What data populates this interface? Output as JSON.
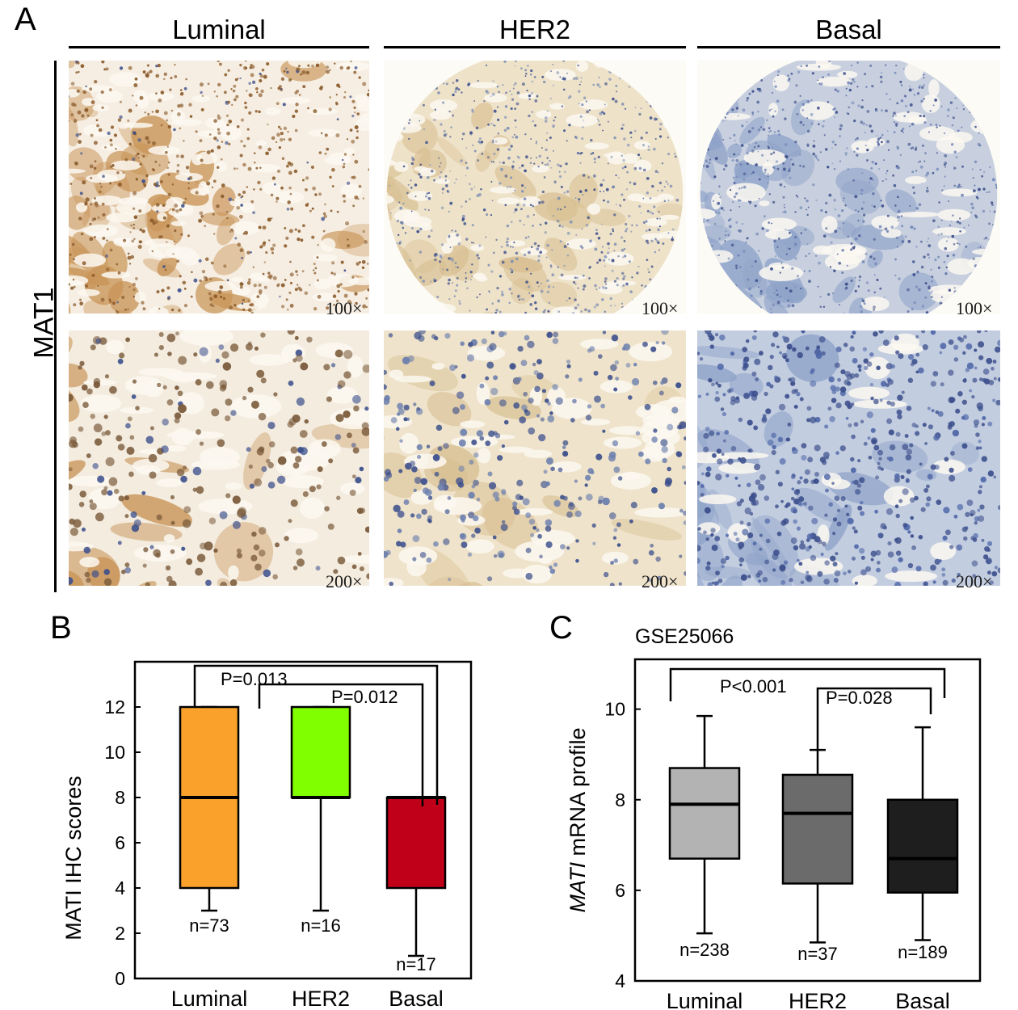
{
  "panel_a": {
    "letter": "A",
    "row_label": "MAT1",
    "columns": [
      "Luminal",
      "HER2",
      "Basal"
    ],
    "magnifications": {
      "low": "100×",
      "high": "200×"
    },
    "colors": {
      "luminal_stain": "#c9965a",
      "her2_stain": "#d8bf92",
      "basal_stain": "#8fa3c9",
      "nuclei": "#3c4f8c"
    }
  },
  "chart_data": [
    {
      "panel": "B",
      "type": "box",
      "title": "",
      "ylabel": "MATI IHC scores",
      "ylim": [
        0,
        14
      ],
      "yticks": [
        0,
        2,
        4,
        6,
        8,
        10,
        12
      ],
      "categories": [
        "Luminal",
        "HER2",
        "Basal"
      ],
      "boxes": [
        {
          "category": "Luminal",
          "min": 3,
          "q1": 4,
          "median": 8,
          "q3": 12,
          "max": 12,
          "n": "n=73",
          "color": "#f9a12a"
        },
        {
          "category": "HER2",
          "min": 3,
          "q1": 8,
          "median": 8,
          "q3": 12,
          "max": 12,
          "n": "n=16",
          "color": "#80ff00"
        },
        {
          "category": "Basal",
          "min": 1,
          "q1": 4,
          "median": 8,
          "q3": 8,
          "max": 8,
          "n": "n=17",
          "color": "#c00018"
        }
      ],
      "comparisons": [
        {
          "from": "Luminal",
          "to": "Basal",
          "label": "P=0.013"
        },
        {
          "from": "HER2",
          "to": "Basal",
          "label": "P=0.012"
        }
      ]
    },
    {
      "panel": "C",
      "type": "box",
      "title": "GSE25066",
      "ylabel_italic": "MATI",
      "ylabel_rest": " mRNA profile",
      "ylim": [
        4,
        11.1
      ],
      "yticks": [
        4,
        6,
        8,
        10
      ],
      "categories": [
        "Luminal",
        "HER2",
        "Basal"
      ],
      "boxes": [
        {
          "category": "Luminal",
          "min": 5.05,
          "q1": 6.7,
          "median": 7.9,
          "q3": 8.7,
          "max": 9.85,
          "n": "n=238",
          "color": "#b3b3b3"
        },
        {
          "category": "HER2",
          "min": 4.85,
          "q1": 6.15,
          "median": 7.7,
          "q3": 8.55,
          "max": 9.1,
          "n": "n=37",
          "color": "#6b6b6b"
        },
        {
          "category": "Basal",
          "min": 4.9,
          "q1": 5.95,
          "median": 6.7,
          "q3": 8.0,
          "max": 9.6,
          "n": "n=189",
          "color": "#1e1e1e"
        }
      ],
      "comparisons": [
        {
          "from": "Luminal",
          "to": "Basal",
          "label": "P<0.001"
        },
        {
          "from": "HER2",
          "to": "Basal",
          "label": "P=0.028"
        }
      ]
    }
  ]
}
